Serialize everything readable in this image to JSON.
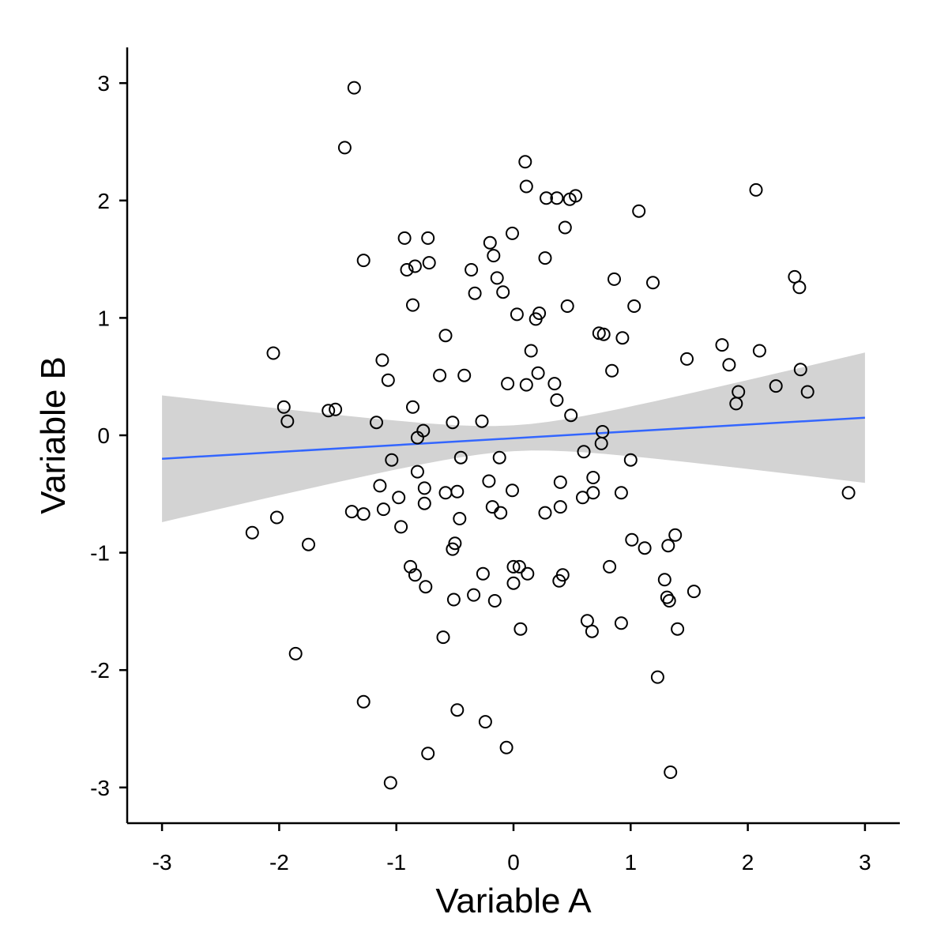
{
  "chart_data": {
    "type": "scatter",
    "xlabel": "Variable A",
    "ylabel": "Variable B",
    "xlim": [
      -3.3,
      3.3
    ],
    "ylim": [
      -3.3,
      3.3
    ],
    "x_ticks": [
      -3,
      -2,
      -1,
      0,
      1,
      2,
      3
    ],
    "y_ticks": [
      -3,
      -2,
      -1,
      0,
      1,
      2,
      3
    ],
    "x_tick_labels": [
      "-3",
      "-2",
      "-1",
      "0",
      "1",
      "2",
      "3"
    ],
    "y_tick_labels": [
      "-3",
      "-2",
      "-1",
      "0",
      "1",
      "2",
      "3"
    ],
    "grid": false,
    "legend": "none",
    "fit_line": {
      "x": [
        -3,
        3
      ],
      "y": [
        -0.2,
        0.15
      ],
      "ci_lower": [
        -0.75,
        -0.4
      ],
      "ci_upper": [
        0.33,
        0.71
      ],
      "color": "#3366FF",
      "ci_color": "#D3D3D3"
    },
    "points": [
      [
        -1.36,
        2.96
      ],
      [
        -1.44,
        2.45
      ],
      [
        0.1,
        2.33
      ],
      [
        0.11,
        2.12
      ],
      [
        0.28,
        2.02
      ],
      [
        0.37,
        2.02
      ],
      [
        0.48,
        2.01
      ],
      [
        0.53,
        2.04
      ],
      [
        2.07,
        2.09
      ],
      [
        1.07,
        1.91
      ],
      [
        0.44,
        1.77
      ],
      [
        -0.93,
        1.68
      ],
      [
        -0.73,
        1.68
      ],
      [
        -0.01,
        1.72
      ],
      [
        -0.2,
        1.64
      ],
      [
        -0.17,
        1.53
      ],
      [
        -1.28,
        1.49
      ],
      [
        0.27,
        1.51
      ],
      [
        -0.72,
        1.47
      ],
      [
        -0.84,
        1.44
      ],
      [
        -0.91,
        1.41
      ],
      [
        -0.36,
        1.41
      ],
      [
        -0.14,
        1.34
      ],
      [
        0.86,
        1.33
      ],
      [
        1.19,
        1.3
      ],
      [
        2.4,
        1.35
      ],
      [
        2.44,
        1.26
      ],
      [
        -0.09,
        1.22
      ],
      [
        -0.33,
        1.21
      ],
      [
        -0.86,
        1.11
      ],
      [
        0.46,
        1.1
      ],
      [
        1.03,
        1.1
      ],
      [
        0.22,
        1.04
      ],
      [
        0.03,
        1.03
      ],
      [
        0.19,
        0.99
      ],
      [
        0.73,
        0.87
      ],
      [
        0.77,
        0.86
      ],
      [
        0.93,
        0.83
      ],
      [
        -0.58,
        0.85
      ],
      [
        1.78,
        0.77
      ],
      [
        2.1,
        0.72
      ],
      [
        -2.05,
        0.7
      ],
      [
        0.15,
        0.72
      ],
      [
        1.48,
        0.65
      ],
      [
        -1.12,
        0.64
      ],
      [
        1.84,
        0.6
      ],
      [
        2.45,
        0.56
      ],
      [
        0.84,
        0.55
      ],
      [
        0.21,
        0.53
      ],
      [
        -0.63,
        0.51
      ],
      [
        -0.42,
        0.51
      ],
      [
        -1.07,
        0.47
      ],
      [
        -0.05,
        0.44
      ],
      [
        0.11,
        0.43
      ],
      [
        0.35,
        0.44
      ],
      [
        2.24,
        0.42
      ],
      [
        2.51,
        0.37
      ],
      [
        1.92,
        0.37
      ],
      [
        1.9,
        0.27
      ],
      [
        0.37,
        0.3
      ],
      [
        -1.96,
        0.24
      ],
      [
        -0.86,
        0.24
      ],
      [
        -1.58,
        0.21
      ],
      [
        -1.52,
        0.22
      ],
      [
        0.49,
        0.17
      ],
      [
        -1.93,
        0.12
      ],
      [
        -1.17,
        0.11
      ],
      [
        -0.52,
        0.11
      ],
      [
        -0.27,
        0.12
      ],
      [
        -0.77,
        0.04
      ],
      [
        0.76,
        0.03
      ],
      [
        -0.82,
        -0.02
      ],
      [
        0.75,
        -0.07
      ],
      [
        0.6,
        -0.14
      ],
      [
        -1.04,
        -0.21
      ],
      [
        -0.45,
        -0.19
      ],
      [
        -0.12,
        -0.19
      ],
      [
        1.0,
        -0.21
      ],
      [
        -0.82,
        -0.31
      ],
      [
        0.68,
        -0.36
      ],
      [
        -0.21,
        -0.39
      ],
      [
        0.4,
        -0.4
      ],
      [
        -1.14,
        -0.43
      ],
      [
        -0.76,
        -0.45
      ],
      [
        -0.58,
        -0.49
      ],
      [
        -0.48,
        -0.48
      ],
      [
        -0.01,
        -0.47
      ],
      [
        0.68,
        -0.49
      ],
      [
        0.92,
        -0.49
      ],
      [
        2.86,
        -0.49
      ],
      [
        0.59,
        -0.53
      ],
      [
        -0.98,
        -0.53
      ],
      [
        -0.76,
        -0.58
      ],
      [
        -0.18,
        -0.61
      ],
      [
        0.4,
        -0.61
      ],
      [
        -1.11,
        -0.63
      ],
      [
        -1.38,
        -0.65
      ],
      [
        -1.28,
        -0.67
      ],
      [
        -0.11,
        -0.66
      ],
      [
        0.27,
        -0.66
      ],
      [
        -2.02,
        -0.7
      ],
      [
        -0.46,
        -0.71
      ],
      [
        -0.96,
        -0.78
      ],
      [
        -2.23,
        -0.83
      ],
      [
        1.38,
        -0.85
      ],
      [
        1.01,
        -0.89
      ],
      [
        -1.75,
        -0.93
      ],
      [
        -0.5,
        -0.92
      ],
      [
        -0.52,
        -0.97
      ],
      [
        1.12,
        -0.96
      ],
      [
        1.32,
        -0.94
      ],
      [
        -0.88,
        -1.12
      ],
      [
        0.0,
        -1.12
      ],
      [
        0.05,
        -1.12
      ],
      [
        0.82,
        -1.12
      ],
      [
        -0.84,
        -1.19
      ],
      [
        -0.26,
        -1.18
      ],
      [
        0.12,
        -1.18
      ],
      [
        0.42,
        -1.19
      ],
      [
        0.39,
        -1.24
      ],
      [
        1.29,
        -1.23
      ],
      [
        0.0,
        -1.26
      ],
      [
        -0.75,
        -1.29
      ],
      [
        -0.34,
        -1.36
      ],
      [
        1.54,
        -1.33
      ],
      [
        -0.51,
        -1.4
      ],
      [
        -0.16,
        -1.41
      ],
      [
        1.31,
        -1.38
      ],
      [
        1.33,
        -1.41
      ],
      [
        0.63,
        -1.58
      ],
      [
        0.92,
        -1.6
      ],
      [
        0.67,
        -1.67
      ],
      [
        0.06,
        -1.65
      ],
      [
        1.4,
        -1.65
      ],
      [
        -0.6,
        -1.72
      ],
      [
        -1.86,
        -1.86
      ],
      [
        1.23,
        -2.06
      ],
      [
        -1.28,
        -2.27
      ],
      [
        -0.48,
        -2.34
      ],
      [
        -0.24,
        -2.44
      ],
      [
        -0.06,
        -2.66
      ],
      [
        -0.73,
        -2.71
      ],
      [
        1.34,
        -2.87
      ],
      [
        -1.05,
        -2.96
      ]
    ]
  }
}
